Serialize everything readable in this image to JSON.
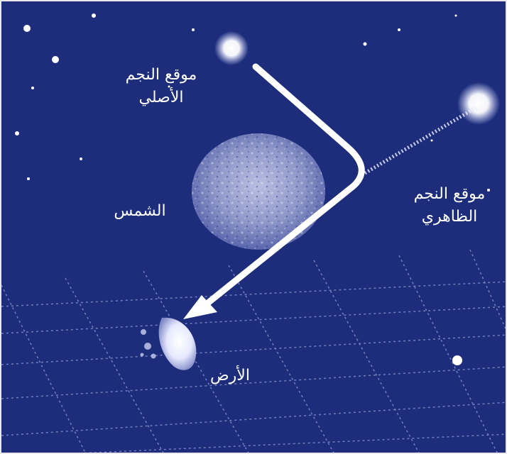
{
  "labels": {
    "original_position": {
      "line1": "موقع النجم",
      "line2": "الأصلي"
    },
    "apparent_position": {
      "line1": "موقع النجم",
      "line2": "الظاهري"
    },
    "sun": "الشمس",
    "earth": "الأرض"
  },
  "colors": {
    "background": "#1d2d7c",
    "foreground": "#ffffff",
    "grid": "#8f9ad0",
    "sun": "#9aa3cf"
  }
}
